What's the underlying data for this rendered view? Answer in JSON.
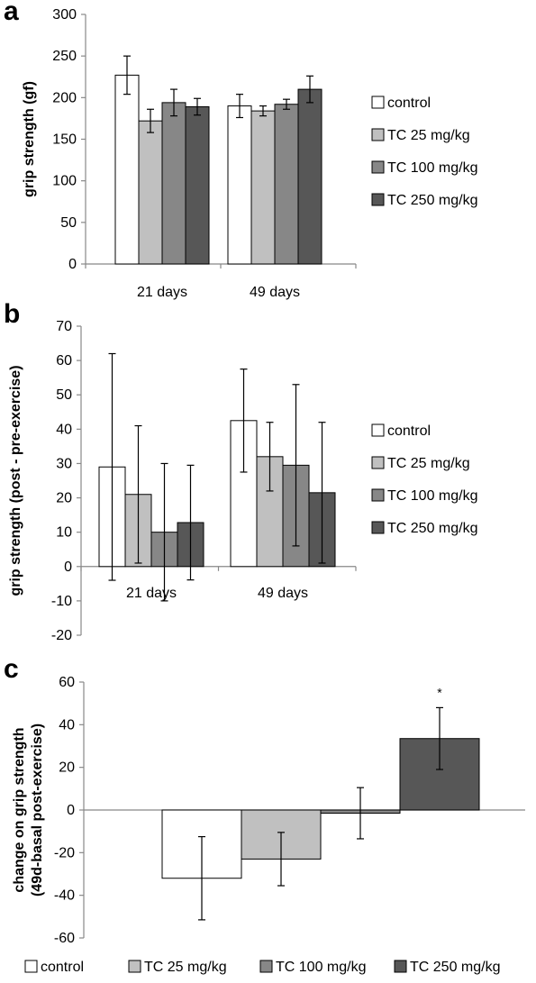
{
  "chart_data": [
    {
      "id": "a",
      "type": "bar",
      "panel_label": "a",
      "ylabel": "grip strength (gf)",
      "ylim": [
        0,
        300
      ],
      "yticks": [
        0,
        50,
        100,
        150,
        200,
        250,
        300
      ],
      "categories": [
        "21 days",
        "49 days"
      ],
      "series": [
        {
          "name": "control",
          "color": "#ffffff",
          "values": [
            227,
            190
          ],
          "errors": [
            23,
            14
          ]
        },
        {
          "name": "TC 25 mg/kg",
          "color": "#c0c0c0",
          "values": [
            172,
            184
          ],
          "errors": [
            14,
            6
          ]
        },
        {
          "name": "TC 100 mg/kg",
          "color": "#878787",
          "values": [
            194,
            192
          ],
          "errors": [
            16,
            6
          ]
        },
        {
          "name": "TC 250 mg/kg",
          "color": "#575757",
          "values": [
            189,
            210
          ],
          "errors": [
            10,
            16
          ]
        }
      ],
      "legend": "right",
      "grid": false
    },
    {
      "id": "b",
      "type": "bar",
      "panel_label": "b",
      "ylabel": "grip strength (post - pre-exercise)",
      "ylim": [
        -20,
        70
      ],
      "yticks": [
        -20,
        -10,
        0,
        10,
        20,
        30,
        40,
        50,
        60,
        70
      ],
      "categories": [
        "21 days",
        "49 days"
      ],
      "series": [
        {
          "name": "control",
          "color": "#ffffff",
          "values": [
            29,
            42.5
          ],
          "errors": [
            33,
            15
          ]
        },
        {
          "name": "TC 25 mg/kg",
          "color": "#c0c0c0",
          "values": [
            21,
            32
          ],
          "errors": [
            20,
            10
          ]
        },
        {
          "name": "TC 100 mg/kg",
          "color": "#878787",
          "values": [
            10,
            29.5
          ],
          "errors": [
            20,
            23.5
          ]
        },
        {
          "name": "TC 250 mg/kg",
          "color": "#575757",
          "values": [
            12.8,
            21.5
          ],
          "errors": [
            16.7,
            20.5
          ]
        }
      ],
      "legend": "right",
      "grid": false
    },
    {
      "id": "c",
      "type": "bar",
      "panel_label": "c",
      "ylabel_lines": [
        "change on grip strength",
        "(49d-basal post-exercise)"
      ],
      "ylim": [
        -60,
        60
      ],
      "yticks": [
        -60,
        -40,
        -20,
        0,
        20,
        40,
        60
      ],
      "categories": [
        "control",
        "TC 25 mg/kg",
        "TC 100 mg/kg",
        "TC 250 mg/kg"
      ],
      "values": [
        -32,
        -23,
        -1.5,
        33.5
      ],
      "errors": [
        19.5,
        12.5,
        12,
        14.5
      ],
      "colors": [
        "#ffffff",
        "#c0c0c0",
        "#878787",
        "#575757"
      ],
      "annotations": [
        {
          "category": "TC 250 mg/kg",
          "text": "*"
        }
      ],
      "legend": "bottom",
      "grid": false
    }
  ]
}
